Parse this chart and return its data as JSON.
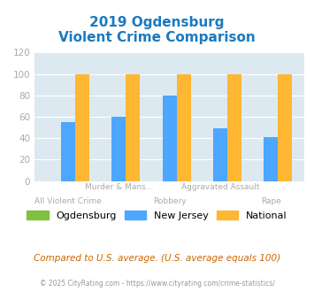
{
  "title_line1": "2019 Ogdensburg",
  "title_line2": "Violent Crime Comparison",
  "categories": [
    "All Violent Crime",
    "Murder & Mans...",
    "Robbery",
    "Aggravated Assault",
    "Rape"
  ],
  "series": {
    "Ogdensburg": [
      0,
      0,
      0,
      0,
      0
    ],
    "New Jersey": [
      55,
      60,
      80,
      49,
      41
    ],
    "National": [
      100,
      100,
      100,
      100,
      100
    ]
  },
  "colors": {
    "Ogdensburg": "#80c040",
    "New Jersey": "#4da6ff",
    "National": "#ffb733"
  },
  "ylim": [
    0,
    120
  ],
  "yticks": [
    0,
    20,
    40,
    60,
    80,
    100,
    120
  ],
  "title_color": "#1a7abf",
  "tick_color": "#aaaaaa",
  "bg_color": "#dce9f0",
  "fig_bg": "#ffffff",
  "footer_text": "Compared to U.S. average. (U.S. average equals 100)",
  "copyright_text": "© 2025 CityRating.com - https://www.cityrating.com/crime-statistics/",
  "bar_width": 0.28,
  "upper_labels": [
    "",
    "Murder & Mans...",
    "",
    "Aggravated Assault",
    ""
  ],
  "lower_labels": [
    "All Violent Crime",
    "",
    "Robbery",
    "",
    "Rape"
  ]
}
